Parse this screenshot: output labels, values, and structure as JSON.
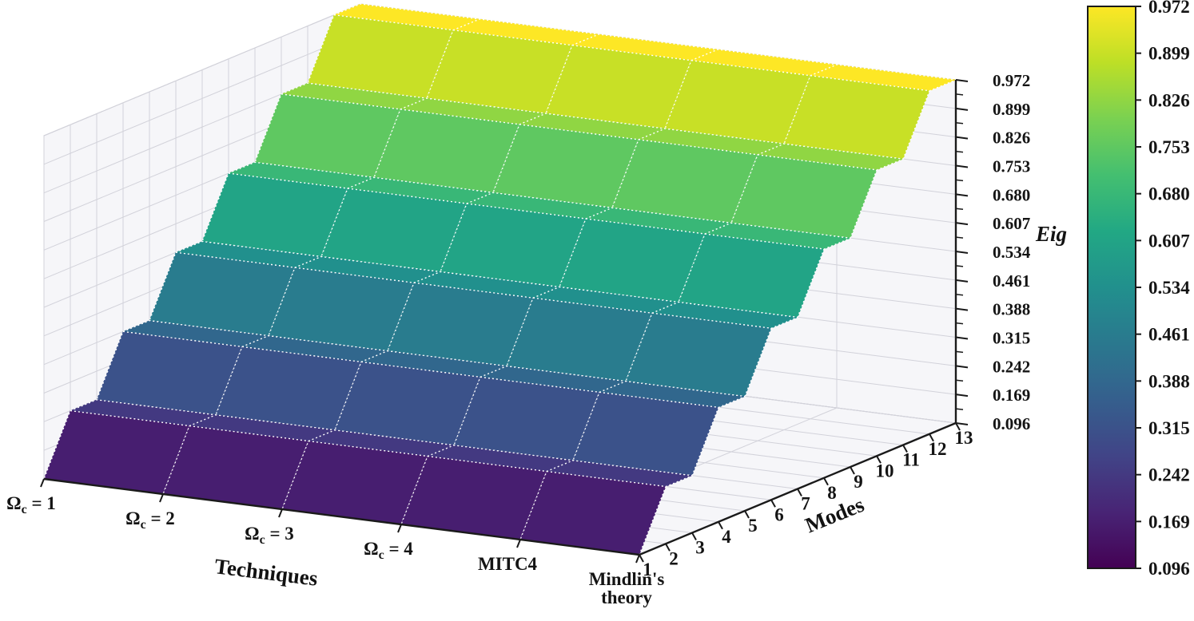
{
  "colors": {
    "background": "#ffffff",
    "pane": "#f6f6f9",
    "pane_border": "#bfbfc8",
    "grid": "#d2d2da",
    "axis": "#1a1a1a",
    "mesh_line": "#ffffff",
    "text": "#141414",
    "colormap_low": "#440154",
    "colormap_high": "#fde725"
  },
  "chart_data": {
    "type": "surface",
    "title": "",
    "colormap": "viridis",
    "x_axis": {
      "label": "Techniques",
      "categories": [
        "Ωc = 1",
        "Ωc = 2",
        "Ωc = 3",
        "Ωc = 4",
        "MITC4",
        "Mindlin's theory"
      ]
    },
    "y_axis": {
      "label": "Modes",
      "ticks": [
        1,
        2,
        3,
        4,
        5,
        6,
        7,
        8,
        9,
        10,
        11,
        12,
        13
      ]
    },
    "z_axis": {
      "label": "Eig",
      "min": 0.096,
      "max": 0.972,
      "ticks": [
        0.096,
        0.169,
        0.242,
        0.315,
        0.388,
        0.461,
        0.534,
        0.607,
        0.68,
        0.753,
        0.826,
        0.899,
        0.972
      ]
    },
    "eig_by_mode": [
      0.096,
      0.242,
      0.242,
      0.388,
      0.388,
      0.534,
      0.534,
      0.68,
      0.68,
      0.826,
      0.826,
      0.972,
      0.972
    ],
    "series_uniform_across_techniques": true,
    "colorbar": {
      "position": "right",
      "ticks": [
        0.972,
        0.899,
        0.826,
        0.753,
        0.68,
        0.607,
        0.534,
        0.461,
        0.388,
        0.315,
        0.242,
        0.169,
        0.096
      ]
    },
    "grid": true
  }
}
